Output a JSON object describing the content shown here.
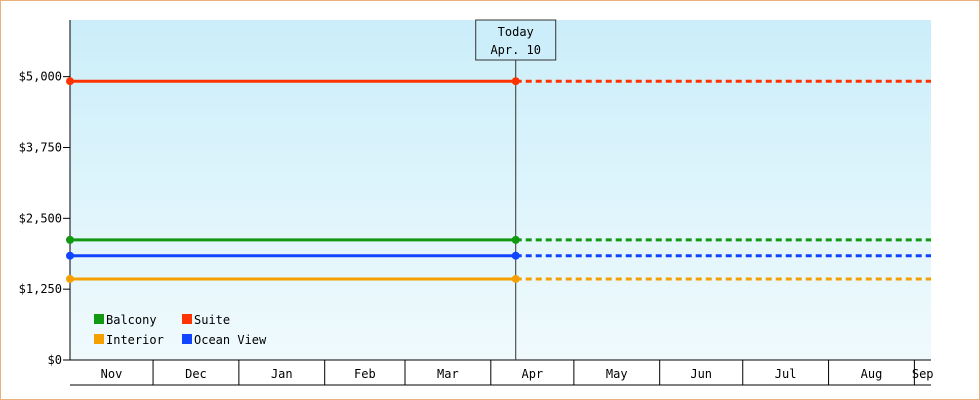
{
  "chart_data": {
    "type": "line",
    "title": "",
    "xlabel": "",
    "ylabel": "",
    "ylim": [
      0,
      6000
    ],
    "y_ticks": [
      "$0",
      "$1,250",
      "$2,500",
      "$3,750",
      "$5,000"
    ],
    "y_tick_values": [
      0,
      1250,
      2500,
      3750,
      5000
    ],
    "x_start": "Nov 1",
    "x_end": "Sep 7",
    "months": [
      "Nov",
      "Dec",
      "Jan",
      "Feb",
      "Mar",
      "Apr",
      "May",
      "Jun",
      "Jul",
      "Aug",
      "Sep"
    ],
    "today": {
      "label_line1": "Today",
      "label_line2": "Apr. 10",
      "date": "Apr 10"
    },
    "grid": false,
    "legend_position": "bottom-left",
    "series": [
      {
        "name": "Balcony",
        "color": "#119911",
        "values": [
          {
            "x": "Nov 1",
            "y": 2120
          },
          {
            "x": "Apr 10",
            "y": 2120
          }
        ],
        "projected_to": "Sep 7"
      },
      {
        "name": "Suite",
        "color": "#ff3300",
        "values": [
          {
            "x": "Nov 1",
            "y": 4920
          },
          {
            "x": "Apr 10",
            "y": 4920
          }
        ],
        "projected_to": "Sep 7"
      },
      {
        "name": "Interior",
        "color": "#f5a000",
        "values": [
          {
            "x": "Nov 1",
            "y": 1430
          },
          {
            "x": "Apr 10",
            "y": 1430
          }
        ],
        "projected_to": "Sep 7"
      },
      {
        "name": "Ocean View",
        "color": "#1144ff",
        "values": [
          {
            "x": "Nov 1",
            "y": 1840
          },
          {
            "x": "Apr 10",
            "y": 1840
          }
        ],
        "projected_to": "Sep 7"
      }
    ]
  },
  "colors": {
    "frame_border": "#e8b27a",
    "plot_top": "#cbeefa",
    "plot_bottom": "#f0fafd"
  }
}
